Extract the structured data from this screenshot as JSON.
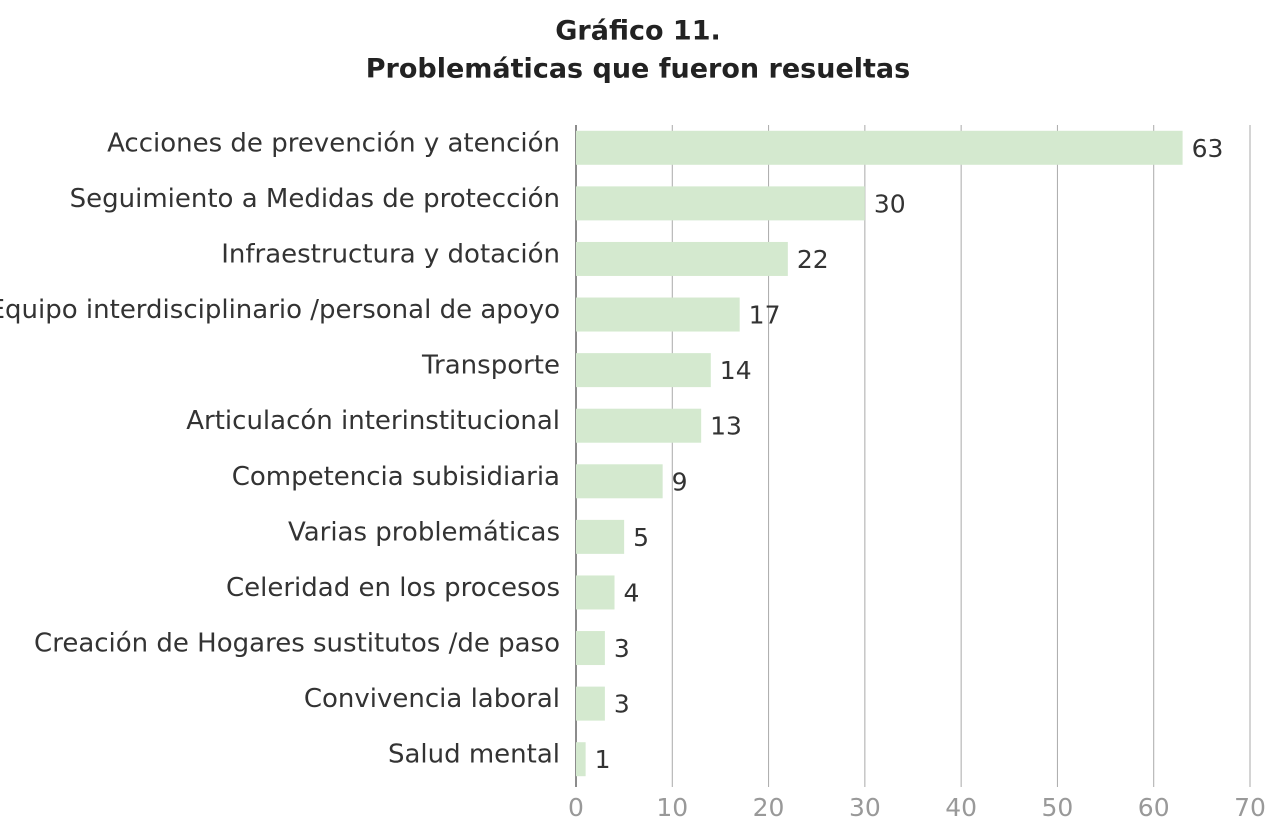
{
  "chart_data": {
    "type": "bar",
    "orientation": "horizontal",
    "title": "Gráfico 11.",
    "subtitle": "Problemáticas que fueron resueltas",
    "categories": [
      "Acciones de prevención y atención",
      "Seguimiento a Medidas de protección",
      "Infraestructura y dotación",
      "Equipo interdisciplinario /personal de apoyo",
      "Transporte",
      "Articulacón interinstitucional",
      "Competencia subisidiaria",
      "Varias problemáticas",
      "Celeridad en los procesos",
      "Creación de Hogares sustitutos /de paso",
      "Convivencia laboral",
      "Salud mental"
    ],
    "values": [
      63,
      30,
      22,
      17,
      14,
      13,
      9,
      5,
      4,
      3,
      3,
      1
    ],
    "color": "#d4e9cf",
    "xlim": [
      0,
      70
    ],
    "xticks": [
      0,
      10,
      20,
      30,
      40,
      50,
      60,
      70
    ],
    "grid": true
  }
}
